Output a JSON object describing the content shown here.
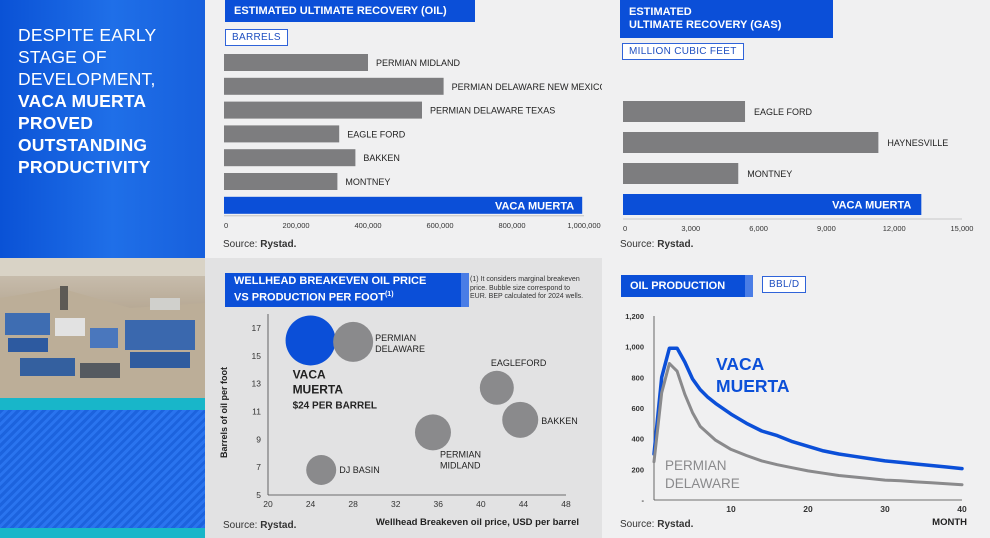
{
  "headline": {
    "light_lines": [
      "DESPITE EARLY",
      "STAGE OF",
      "DEVELOPMENT,"
    ],
    "bold_lines": [
      "VACA MUERTA",
      "PROVED",
      "OUTSTANDING",
      "PRODUCTIVITY"
    ]
  },
  "colors": {
    "blue": "#0b4fd8",
    "bar_grey": "#7d7d7f",
    "bubble_grey": "#8a8a8c",
    "teal": "#18b6c9"
  },
  "chart_data": [
    {
      "type": "bar",
      "orientation": "horizontal",
      "title": "ESTIMATED ULTIMATE RECOVERY (OIL)",
      "unit": "BARRELS",
      "categories": [
        "PERMIAN MIDLAND",
        "PERMIAN DELAWARE NEW MEXICO",
        "PERMIAN DELAWARE TEXAS",
        "EAGLE FORD",
        "BAKKEN",
        "MONTNEY",
        "VACA MUERTA"
      ],
      "values": [
        400000,
        610000,
        550000,
        320000,
        365000,
        315000,
        995000
      ],
      "highlight": "VACA MUERTA",
      "xlim": [
        0,
        1000000
      ],
      "xticks": [
        "0",
        "200,000",
        "400,000",
        "600,000",
        "800,000",
        "1,000,000"
      ],
      "source_label": "Source:",
      "source": "Rystad."
    },
    {
      "type": "bar",
      "orientation": "horizontal",
      "title": [
        "ESTIMATED",
        "ULTIMATE RECOVERY (GAS)"
      ],
      "unit": "MILLION CUBIC FEET",
      "categories": [
        "EAGLE FORD",
        "HAYNESVILLE",
        "MONTNEY",
        "VACA MUERTA"
      ],
      "values": [
        5400,
        11300,
        5100,
        13200
      ],
      "highlight": "VACA MUERTA",
      "xlim": [
        0,
        15000
      ],
      "xticks": [
        "0",
        "3,000",
        "6,000",
        "9,000",
        "12,000",
        "15,000"
      ],
      "source_label": "Source:",
      "source": "Rystad."
    },
    {
      "type": "scatter",
      "subtype": "bubble",
      "title": [
        "WELLHEAD BREAKEVEN OIL PRICE",
        "VS PRODUCTION PER FOOT"
      ],
      "title_sup": "(1)",
      "note": [
        "(1) It considers marginal breakeven",
        "price. Bubble size correspond to",
        "EUR. BEP calculated for 2024 wells."
      ],
      "xlabel": "Wellhead Breakeven oil price, USD per barrel",
      "ylabel": "Barrels of oil per foot",
      "xlim": [
        20,
        48
      ],
      "ylim": [
        5,
        18
      ],
      "xticks": [
        20,
        24,
        28,
        32,
        36,
        40,
        44,
        48
      ],
      "yticks": [
        5,
        7,
        9,
        11,
        13,
        15,
        17
      ],
      "points": [
        {
          "name": "VACA MUERTA",
          "x": 24,
          "y": 16.1,
          "size": 1.0,
          "highlight": true,
          "sublabel": "$24 PER BARREL"
        },
        {
          "name": "PERMIAN DELAWARE",
          "x": 28,
          "y": 16.0,
          "size": 0.8
        },
        {
          "name": "EAGLEFORD",
          "x": 41.5,
          "y": 12.7,
          "size": 0.68
        },
        {
          "name": "BAKKEN",
          "x": 43.7,
          "y": 10.4,
          "size": 0.72
        },
        {
          "name": "PERMIAN MIDLAND",
          "x": 35.5,
          "y": 9.5,
          "size": 0.72
        },
        {
          "name": "DJ BASIN",
          "x": 25.0,
          "y": 6.8,
          "size": 0.6
        }
      ],
      "source_label": "Source:",
      "source": "Rystad."
    },
    {
      "type": "line",
      "title": "OIL PRODUCTION",
      "unit": "BBL/D",
      "xlabel": "MONTH",
      "xlim": [
        0,
        40
      ],
      "ylim": [
        0,
        1200
      ],
      "xticks": [
        10,
        20,
        30,
        40
      ],
      "yticks": [
        "-",
        "200",
        "400",
        "600",
        "800",
        "1,000",
        "1,200"
      ],
      "series": [
        {
          "name": "VACA MUERTA",
          "color": "#0b4fd8",
          "x": [
            0,
            1,
            2,
            3,
            4,
            5,
            6,
            7,
            8,
            10,
            12,
            14,
            16,
            18,
            20,
            22,
            24,
            26,
            28,
            30,
            32,
            34,
            36,
            38,
            40
          ],
          "y": [
            300,
            800,
            990,
            990,
            900,
            790,
            720,
            670,
            630,
            560,
            500,
            450,
            420,
            380,
            350,
            320,
            300,
            285,
            270,
            255,
            245,
            235,
            225,
            215,
            205
          ]
        },
        {
          "name": "PERMIAN DELAWARE",
          "color": "#8a8a8c",
          "x": [
            0,
            1,
            2,
            3,
            4,
            5,
            6,
            8,
            10,
            12,
            14,
            16,
            18,
            20,
            22,
            24,
            26,
            28,
            30,
            32,
            34,
            36,
            38,
            40
          ],
          "y": [
            250,
            700,
            890,
            840,
            690,
            570,
            480,
            390,
            330,
            290,
            255,
            230,
            210,
            190,
            175,
            160,
            150,
            140,
            130,
            125,
            118,
            112,
            106,
            100
          ]
        }
      ],
      "source_label": "Source:",
      "source": "Rystad."
    }
  ]
}
